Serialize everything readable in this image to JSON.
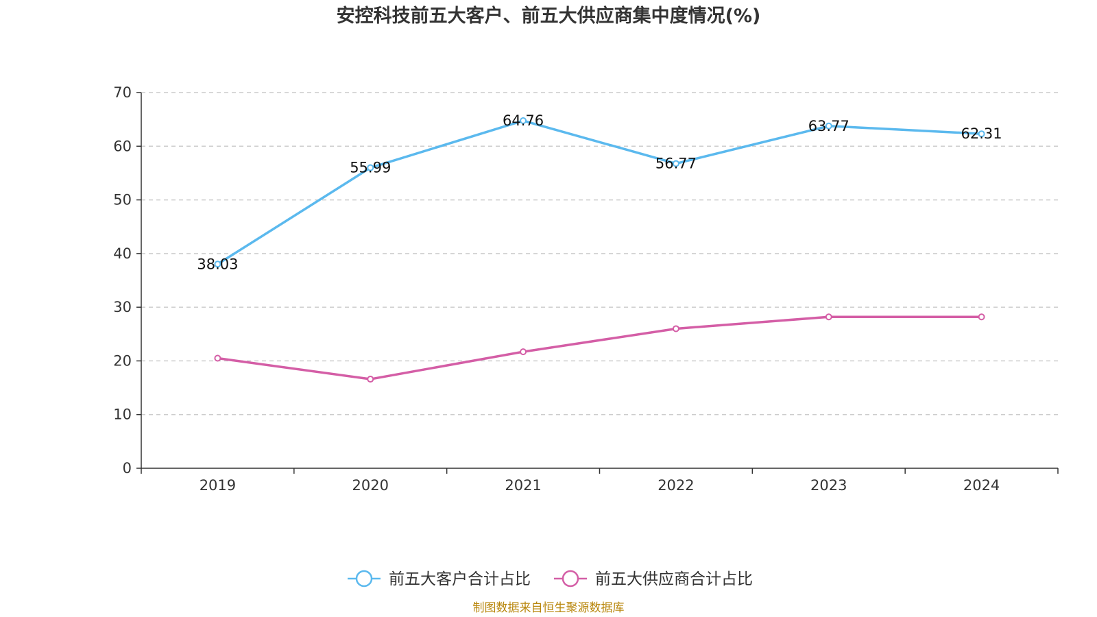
{
  "chart_data": {
    "type": "line",
    "title": "安控科技前五大客户、前五大供应商集中度情况(%)",
    "x": [
      "2019",
      "2020",
      "2021",
      "2022",
      "2023",
      "2024"
    ],
    "ylim": [
      0,
      70
    ],
    "yticks": [
      0,
      10,
      20,
      30,
      40,
      50,
      60,
      70
    ],
    "grid": true,
    "legend_position": "bottom",
    "series": [
      {
        "name": "前五大客户合计占比",
        "color": "#5bb9ee",
        "values": [
          38.03,
          55.99,
          64.76,
          56.77,
          63.77,
          62.31
        ],
        "labels": [
          "38.03",
          "55.99",
          "64.76",
          "56.77",
          "63.77",
          "62.31"
        ]
      },
      {
        "name": "前五大供应商合计占比",
        "color": "#d45ea6",
        "values": [
          20.5,
          16.6,
          21.7,
          26.0,
          28.2,
          28.2
        ],
        "labels": []
      }
    ]
  },
  "source": "制图数据来自恒生聚源数据库"
}
